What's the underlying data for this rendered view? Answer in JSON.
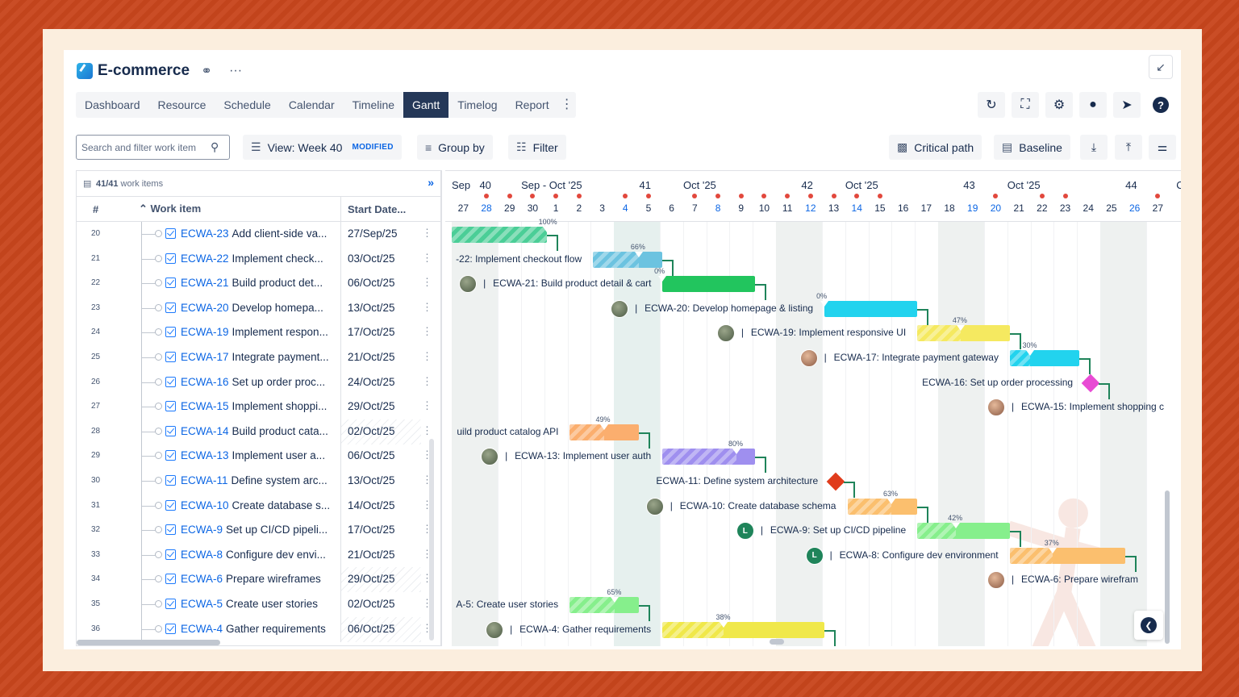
{
  "app": {
    "title": "E-commerce"
  },
  "tabs": [
    "Dashboard",
    "Resource",
    "Schedule",
    "Calendar",
    "Timeline",
    "Gantt",
    "Timelog",
    "Report"
  ],
  "active_tab": "Gantt",
  "toolbar": {
    "search_placeholder": "Search and filter work item",
    "view_label": "View: Week 40",
    "modified_badge": "MODIFIED",
    "group_by": "Group by",
    "filter": "Filter",
    "critical_path": "Critical path",
    "baseline": "Baseline"
  },
  "grid": {
    "count_num": "41/41",
    "count_label": "work items",
    "col_num": "#",
    "col_work": "Work item",
    "col_start": "Start Date...",
    "rows": [
      {
        "n": "20",
        "key": "ECWA-23",
        "name": "Add client-side va...",
        "date": "27/Sep/25",
        "hatch": false
      },
      {
        "n": "21",
        "key": "ECWA-22",
        "name": "Implement check...",
        "date": "03/Oct/25",
        "hatch": false
      },
      {
        "n": "22",
        "key": "ECWA-21",
        "name": "Build product det...",
        "date": "06/Oct/25",
        "hatch": false
      },
      {
        "n": "23",
        "key": "ECWA-20",
        "name": "Develop homepa...",
        "date": "13/Oct/25",
        "hatch": false
      },
      {
        "n": "24",
        "key": "ECWA-19",
        "name": "Implement respon...",
        "date": "17/Oct/25",
        "hatch": false
      },
      {
        "n": "25",
        "key": "ECWA-17",
        "name": "Integrate payment...",
        "date": "21/Oct/25",
        "hatch": false
      },
      {
        "n": "26",
        "key": "ECWA-16",
        "name": "Set up order proc...",
        "date": "24/Oct/25",
        "hatch": false
      },
      {
        "n": "27",
        "key": "ECWA-15",
        "name": "Implement shoppi...",
        "date": "29/Oct/25",
        "hatch": false
      },
      {
        "n": "28",
        "key": "ECWA-14",
        "name": "Build product cata...",
        "date": "02/Oct/25",
        "hatch": true
      },
      {
        "n": "29",
        "key": "ECWA-13",
        "name": "Implement user a...",
        "date": "06/Oct/25",
        "hatch": false
      },
      {
        "n": "30",
        "key": "ECWA-11",
        "name": "Define system arc...",
        "date": "13/Oct/25",
        "hatch": false
      },
      {
        "n": "31",
        "key": "ECWA-10",
        "name": "Create database s...",
        "date": "14/Oct/25",
        "hatch": false
      },
      {
        "n": "32",
        "key": "ECWA-9",
        "name": "Set up CI/CD pipeli...",
        "date": "17/Oct/25",
        "hatch": false
      },
      {
        "n": "33",
        "key": "ECWA-8",
        "name": "Configure dev envi...",
        "date": "21/Oct/25",
        "hatch": false
      },
      {
        "n": "34",
        "key": "ECWA-6",
        "name": "Prepare wireframes",
        "date": "29/Oct/25",
        "hatch": true
      },
      {
        "n": "35",
        "key": "ECWA-5",
        "name": "Create user stories",
        "date": "02/Oct/25",
        "hatch": false
      },
      {
        "n": "36",
        "key": "ECWA-4",
        "name": "Gather requirements",
        "date": "06/Oct/25",
        "hatch": true
      }
    ]
  },
  "timeline": {
    "weeks": [
      {
        "label": "Sep",
        "col": 0
      },
      {
        "label": "40",
        "col": 1.2
      },
      {
        "label": "Sep - Oct '25",
        "col": 3
      },
      {
        "label": "41",
        "col": 8.1
      },
      {
        "label": "Oct '25",
        "col": 10
      },
      {
        "label": "42",
        "col": 15.1
      },
      {
        "label": "Oct '25",
        "col": 17
      },
      {
        "label": "43",
        "col": 22.1
      },
      {
        "label": "Oct '25",
        "col": 24
      },
      {
        "label": "44",
        "col": 29.1
      },
      {
        "label": "C",
        "col": 31.3
      }
    ],
    "days": [
      "27",
      "28",
      "29",
      "30",
      "1",
      "2",
      "3",
      "4",
      "5",
      "6",
      "7",
      "8",
      "9",
      "10",
      "11",
      "12",
      "13",
      "14",
      "15",
      "16",
      "17",
      "18",
      "19",
      "20",
      "21",
      "22",
      "23",
      "24",
      "25",
      "26",
      "27"
    ],
    "blue_days": [
      1,
      7,
      11,
      15,
      17,
      22,
      23,
      29
    ],
    "marker_days": [
      1,
      2,
      3,
      4,
      5,
      7,
      8,
      10,
      11,
      12,
      13,
      14,
      15,
      16,
      17,
      18,
      23,
      25,
      26,
      30
    ],
    "weekend_days": [
      0,
      7,
      14,
      21,
      28
    ],
    "today_day": 14
  },
  "bars": [
    {
      "row": 0,
      "start": 0,
      "end": 4.1,
      "color": "#4bce97",
      "pct": "100%",
      "label": "",
      "labelSide": "none"
    },
    {
      "row": 1,
      "start": 6.1,
      "end": 9.1,
      "color": "#6cc3e0",
      "pct": "66%",
      "label": "-22: Implement checkout flow",
      "labelSide": "left",
      "clip": true
    },
    {
      "row": 2,
      "start": 9.1,
      "end": 13.1,
      "color": "#22c55e",
      "pct": "0%",
      "label": "ECWA-21: Build product detail & cart",
      "labelSide": "left",
      "avatar": "photo"
    },
    {
      "row": 3,
      "start": 16.1,
      "end": 20.1,
      "color": "#22d3ee",
      "pct": "0%",
      "label": "ECWA-20: Develop homepage & listing",
      "labelSide": "left",
      "avatar": "photo"
    },
    {
      "row": 4,
      "start": 20.1,
      "end": 24.1,
      "color": "#f5e960",
      "pct": "47%",
      "label": "ECWA-19: Implement responsive UI",
      "labelSide": "left",
      "avatar": "photo"
    },
    {
      "row": 5,
      "start": 24.1,
      "end": 27.1,
      "color": "#22d3ee",
      "pct": "30%",
      "label": "ECWA-17: Integrate payment gateway",
      "labelSide": "left",
      "avatar": "photo2"
    },
    {
      "row": 6,
      "milestone": true,
      "at": 27.6,
      "color": "#e84bd4",
      "label": "ECWA-16: Set up order processing",
      "labelSide": "left"
    },
    {
      "row": 7,
      "start": 31.5,
      "end": 32,
      "color": "#22d3ee",
      "pct": "",
      "label": "ECWA-15: Implement shopping c",
      "labelSide": "right-clip",
      "avatar": "photo2"
    },
    {
      "row": 8,
      "start": 5.1,
      "end": 8.1,
      "color": "#fbae6e",
      "pct": "49%",
      "label": "uild product catalog API",
      "labelSide": "left",
      "clip": true
    },
    {
      "row": 9,
      "start": 9.1,
      "end": 13.1,
      "color": "#9f8fef",
      "pct": "80%",
      "label": "ECWA-13: Implement user auth",
      "labelSide": "left",
      "avatar": "photo"
    },
    {
      "row": 10,
      "milestone": true,
      "at": 16.6,
      "color": "#e03c1c",
      "label": "ECWA-11: Define system architecture",
      "labelSide": "left"
    },
    {
      "row": 11,
      "start": 17.1,
      "end": 20.1,
      "color": "#fbbf6e",
      "pct": "63%",
      "label": "ECWA-10: Create database schema",
      "labelSide": "left",
      "avatar": "photo"
    },
    {
      "row": 12,
      "start": 20.1,
      "end": 24.1,
      "color": "#86ef8c",
      "pct": "42%",
      "label": "ECWA-9: Set up CI/CD pipeline",
      "labelSide": "left",
      "avatar": "L"
    },
    {
      "row": 13,
      "start": 24.1,
      "end": 29.1,
      "color": "#fbbf6e",
      "pct": "37%",
      "label": "ECWA-8: Configure dev environment",
      "labelSide": "left",
      "avatar": "L"
    },
    {
      "row": 14,
      "start": 31.5,
      "end": 32,
      "color": "#fbbf6e",
      "pct": "",
      "label": "ECWA-6: Prepare wirefram",
      "labelSide": "right-clip",
      "avatar": "photo2"
    },
    {
      "row": 15,
      "start": 5.1,
      "end": 8.1,
      "color": "#86ef8c",
      "pct": "65%",
      "label": "A-5: Create user stories",
      "labelSide": "left",
      "clip": true
    },
    {
      "row": 16,
      "start": 9.1,
      "end": 16.1,
      "color": "#f0e84a",
      "pct": "38%",
      "label": "ECWA-4: Gather requirements",
      "labelSide": "left",
      "avatar": "photo"
    }
  ]
}
